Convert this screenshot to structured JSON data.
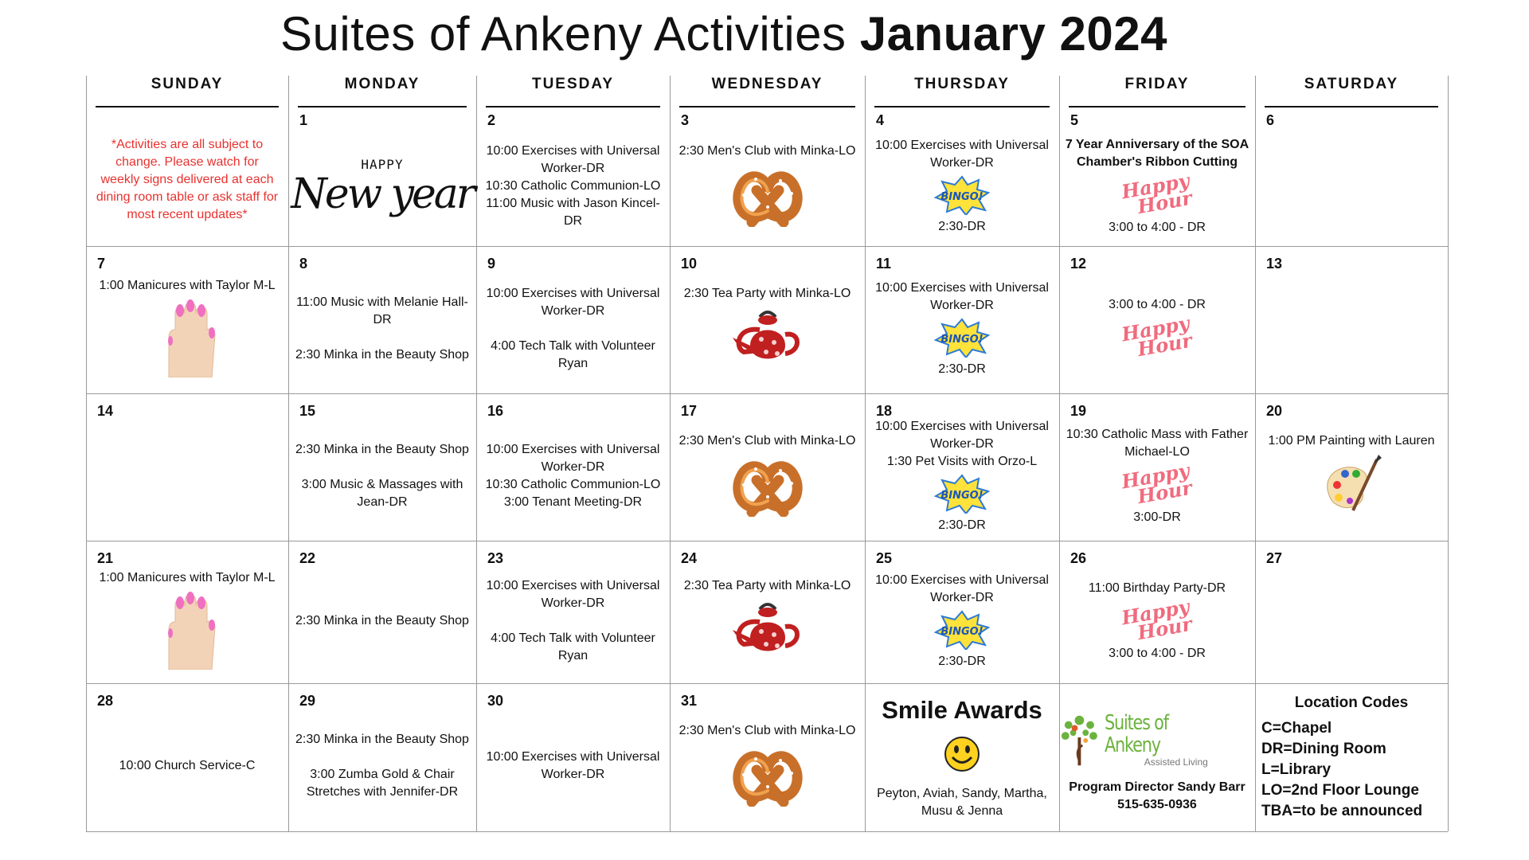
{
  "header": {
    "title": "Suites of Ankeny Activities",
    "title_bold": "January 2024"
  },
  "days": [
    "SUNDAY",
    "MONDAY",
    "TUESDAY",
    "WEDNESDAY",
    "THURSDAY",
    "FRIDAY",
    "SATURDAY"
  ],
  "weeks": [
    [
      {
        "items": [
          "*Activities are all subject to change. Please watch for weekly signs delivered at each dining room table or ask staff for most recent updates*"
        ]
      },
      {
        "date": "1",
        "art": [
          "HAPPY",
          "New year"
        ]
      },
      {
        "date": "2",
        "items": [
          "10:00 Exercises with Universal Worker-DR",
          "10:30 Catholic Communion-LO",
          "11:00 Music with Jason Kincel-DR"
        ]
      },
      {
        "date": "3",
        "items": [
          "2:30 Men's Club with Minka-LO"
        ]
      },
      {
        "date": "4",
        "items": [
          "10:00 Exercises with Universal Worker-DR",
          "2:30-DR"
        ],
        "art": [
          "BINGO!"
        ]
      },
      {
        "date": "5",
        "items": [
          "7 Year Anniversary of the SOA Chamber's Ribbon Cutting",
          "3:00 to 4:00 - DR"
        ],
        "art": [
          "Happy",
          "Hour"
        ]
      },
      {
        "date": "6"
      }
    ],
    [
      {
        "date": "7",
        "items": [
          "1:00 Manicures with Taylor M-L"
        ]
      },
      {
        "date": "8",
        "items": [
          "11:00 Music with Melanie Hall-DR",
          "2:30 Minka in the Beauty Shop"
        ]
      },
      {
        "date": "9",
        "items": [
          "10:00 Exercises with Universal Worker-DR",
          "4:00 Tech Talk with Volunteer Ryan"
        ]
      },
      {
        "date": "10",
        "items": [
          "2:30 Tea Party with Minka-LO"
        ]
      },
      {
        "date": "11",
        "items": [
          "10:00 Exercises with Universal Worker-DR",
          "2:30-DR"
        ],
        "art": [
          "BINGO!"
        ]
      },
      {
        "date": "12",
        "items": [
          "3:00 to 4:00 - DR"
        ],
        "art": [
          "Happy",
          "Hour"
        ]
      },
      {
        "date": "13"
      }
    ],
    [
      {
        "date": "14"
      },
      {
        "date": "15",
        "items": [
          "2:30 Minka in the Beauty Shop",
          "3:00 Music & Massages with Jean-DR"
        ]
      },
      {
        "date": "16",
        "items": [
          "10:00 Exercises with Universal Worker-DR",
          "10:30 Catholic Communion-LO",
          "3:00 Tenant Meeting-DR"
        ]
      },
      {
        "date": "17",
        "items": [
          "2:30 Men's Club with Minka-LO"
        ]
      },
      {
        "date": "18",
        "items": [
          "10:00 Exercises with Universal Worker-DR",
          "1:30 Pet Visits with Orzo-L",
          "2:30-DR"
        ],
        "art": [
          "BINGO!"
        ]
      },
      {
        "date": "19",
        "items": [
          "10:30 Catholic Mass with Father Michael-LO",
          "3:00-DR"
        ],
        "art": [
          "Happy",
          "Hour"
        ]
      },
      {
        "date": "20",
        "items": [
          "1:00 PM Painting with Lauren"
        ]
      }
    ],
    [
      {
        "date": "21",
        "items": [
          "1:00 Manicures with Taylor M-L"
        ]
      },
      {
        "date": "22",
        "items": [
          "2:30 Minka in the Beauty Shop"
        ]
      },
      {
        "date": "23",
        "items": [
          "10:00 Exercises with Universal Worker-DR",
          "4:00 Tech Talk with Volunteer Ryan"
        ]
      },
      {
        "date": "24",
        "items": [
          "2:30 Tea Party with Minka-LO"
        ]
      },
      {
        "date": "25",
        "items": [
          "10:00 Exercises with Universal Worker-DR",
          "2:30-DR"
        ],
        "art": [
          "BINGO!"
        ]
      },
      {
        "date": "26",
        "items": [
          "11:00 Birthday Party-DR",
          "3:00 to 4:00 - DR"
        ],
        "art": [
          "Happy",
          "Hour"
        ]
      },
      {
        "date": "27"
      }
    ],
    [
      {
        "date": "28",
        "items": [
          "10:00 Church Service-C"
        ]
      },
      {
        "date": "29",
        "items": [
          "2:30 Minka in the Beauty Shop",
          "3:00 Zumba Gold & Chair Stretches with Jennifer-DR"
        ]
      },
      {
        "date": "30",
        "items": [
          "10:00 Exercises with Universal Worker-DR"
        ]
      },
      {
        "date": "31",
        "items": [
          "2:30 Men's Club with Minka-LO"
        ]
      },
      {
        "heading": "Smile Awards",
        "items": [
          "Peyton, Aviah, Sandy, Martha, Musu & Jenna"
        ]
      },
      {
        "art": [
          "Suites of Ankeny",
          "Assisted Living"
        ],
        "items": [
          "Program Director Sandy Barr",
          "515-635-0936"
        ]
      },
      {
        "heading": "Location Codes",
        "items": [
          "C=Chapel",
          "DR=Dining Room",
          "L=Library",
          "LO=2nd Floor Lounge",
          "TBA=to be announced"
        ]
      }
    ]
  ]
}
